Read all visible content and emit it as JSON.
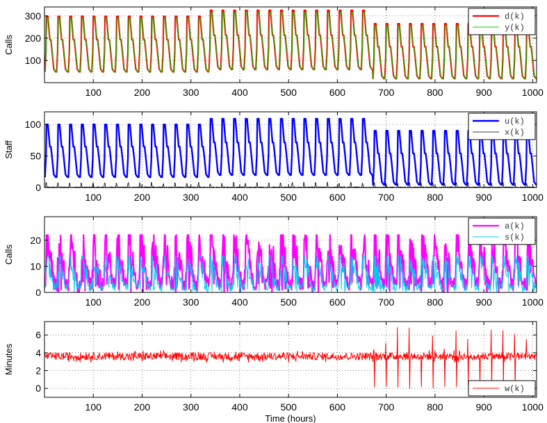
{
  "chart_data": [
    {
      "type": "line",
      "ylabel": "Calls",
      "xlim": [
        0,
        1008
      ],
      "ylim": [
        0,
        340
      ],
      "xticks": [
        100,
        200,
        300,
        400,
        500,
        600,
        700,
        800,
        900,
        1000
      ],
      "yticks": [
        100,
        200,
        300
      ],
      "grid": true,
      "legend_position": "top-right",
      "series": [
        {
          "name": "d(k)",
          "color": "#ff0000",
          "width": 2.2,
          "pattern": "daily",
          "period": 24,
          "segments": [
            {
              "from": 1,
              "to": 336,
              "min": 35,
              "max": 298
            },
            {
              "from": 336,
              "to": 672,
              "min": 45,
              "max": 325
            },
            {
              "from": 672,
              "to": 1008,
              "min": 5,
              "max": 265
            }
          ]
        },
        {
          "name": "y(k)",
          "color": "#00cc00",
          "width": 1.0,
          "pattern": "daily_lag",
          "period": 24,
          "segments": [
            {
              "from": 1,
              "to": 336,
              "min": 35,
              "max": 298
            },
            {
              "from": 336,
              "to": 672,
              "min": 45,
              "max": 325
            },
            {
              "from": 672,
              "to": 1008,
              "min": 5,
              "max": 265
            }
          ]
        }
      ]
    },
    {
      "type": "line",
      "ylabel": "Staff",
      "xlim": [
        0,
        1008
      ],
      "ylim": [
        0,
        120
      ],
      "xticks": [
        100,
        200,
        300,
        400,
        500,
        600,
        700,
        800,
        900,
        1000
      ],
      "yticks": [
        0,
        50,
        100
      ],
      "grid": true,
      "legend_position": "top-right",
      "series": [
        {
          "name": "u(k)",
          "color": "#0000ff",
          "width": 2.4,
          "pattern": "daily",
          "period": 24,
          "segments": [
            {
              "from": 1,
              "to": 336,
              "min": 12,
              "max": 100
            },
            {
              "from": 336,
              "to": 672,
              "min": 15,
              "max": 109
            },
            {
              "from": 672,
              "to": 1008,
              "min": 0,
              "max": 90
            }
          ]
        },
        {
          "name": "x(k)",
          "color": "#000000",
          "width": 0.8,
          "pattern": "backlog",
          "period": 24,
          "segments": [
            {
              "from": 1,
              "to": 1008,
              "min": 0,
              "max": 8
            }
          ]
        }
      ]
    },
    {
      "type": "line",
      "ylabel": "Calls",
      "xlim": [
        0,
        1008
      ],
      "ylim": [
        0,
        29
      ],
      "xticks": [
        100,
        200,
        300,
        400,
        500,
        600,
        700,
        800,
        900,
        1000
      ],
      "yticks": [
        0,
        10,
        20
      ],
      "grid": true,
      "legend_position": "top-right",
      "series": [
        {
          "name": "a(k)",
          "color": "#ff00ff",
          "width": 2.2,
          "pattern": "noisy",
          "period": 24,
          "segments": [
            {
              "from": 1,
              "to": 1008,
              "min": 0,
              "max": 22
            }
          ]
        },
        {
          "name": "s(k)",
          "color": "#00ccee",
          "width": 1.0,
          "pattern": "noisy",
          "period": 24,
          "segments": [
            {
              "from": 1,
              "to": 1008,
              "min": 0,
              "max": 14
            }
          ]
        }
      ]
    },
    {
      "type": "line",
      "xlabel": "Time (hours)",
      "ylabel": "Minutes",
      "xlim": [
        0,
        1008
      ],
      "ylim": [
        -1,
        7.5
      ],
      "xticks": [
        100,
        200,
        300,
        400,
        500,
        600,
        700,
        800,
        900,
        1000
      ],
      "yticks": [
        0,
        2,
        4,
        6
      ],
      "grid": true,
      "legend_position": "bottom-right",
      "series": [
        {
          "name": "w(k)",
          "color": "#ff0000",
          "width": 1.0,
          "pattern": "wait",
          "period": 24,
          "segments": [
            {
              "from": 1,
              "to": 672,
              "mean": 3.6,
              "spread": 0.7
            },
            {
              "from": 672,
              "to": 1008,
              "mean": 3.6,
              "spread": 0.7,
              "spike_max": 7.0,
              "spike_min": 0.0
            }
          ]
        }
      ]
    }
  ]
}
